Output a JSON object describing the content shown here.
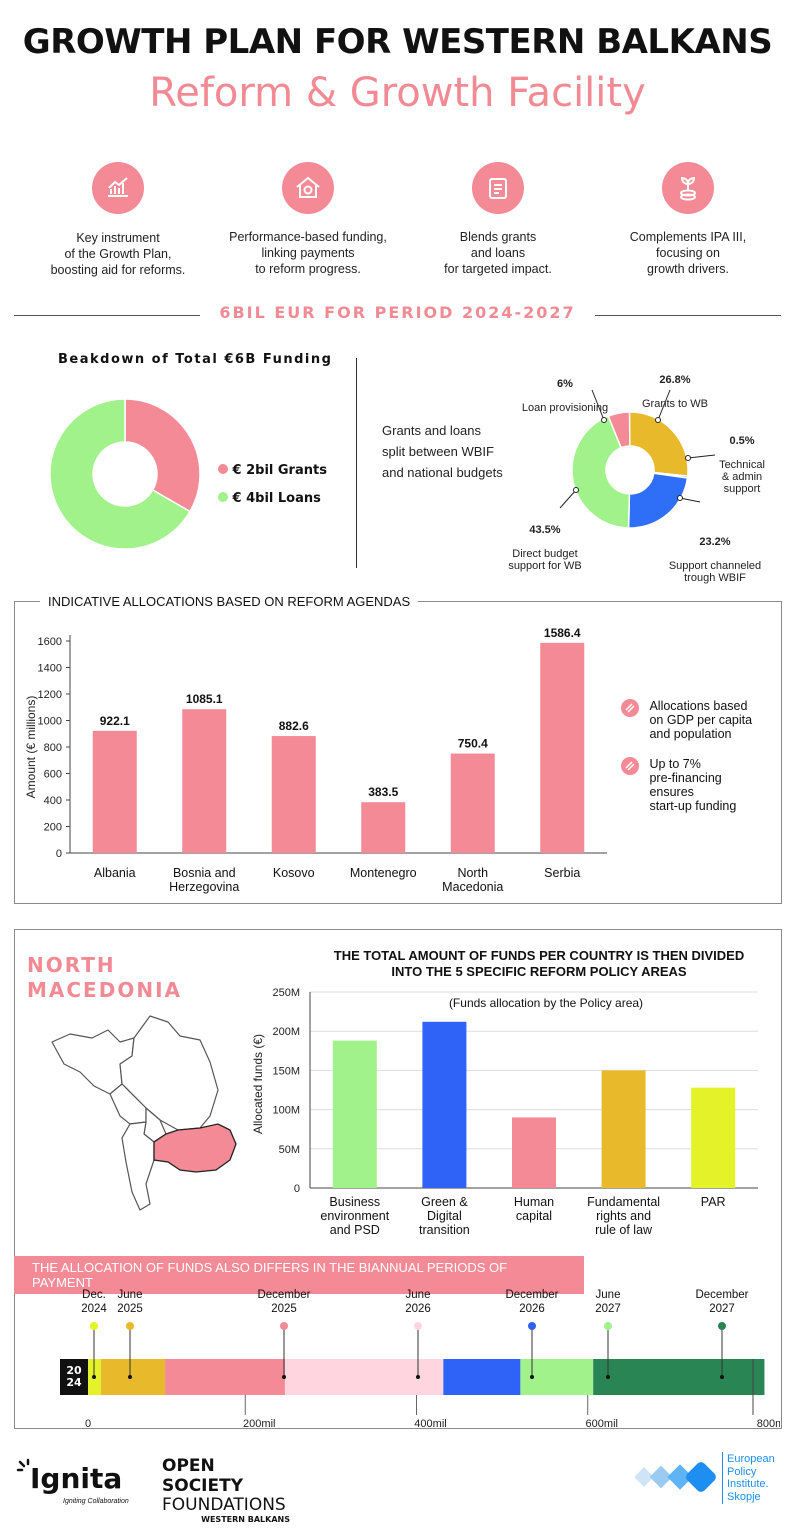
{
  "header": {
    "title": "GROWTH PLAN FOR WESTERN BALKANS",
    "subtitle": "Reform & Growth Facility"
  },
  "features": [
    {
      "icon": "chart-growth-icon",
      "text": "Key instrument\nof the Growth Plan,\nboosting aid for reforms."
    },
    {
      "icon": "house-coin-icon",
      "text": "Performance-based funding,\nlinking payments\nto reform progress."
    },
    {
      "icon": "checklist-icon",
      "text": "Blends grants\nand loans\nfor targeted impact."
    },
    {
      "icon": "plant-coins-icon",
      "text": "Complements IPA III,\nfocusing on\ngrowth drivers."
    }
  ],
  "period_heading": "6BIL EUR FOR PERIOD 2024-2027",
  "funding": {
    "title": "Beakdown of Total €6B Funding",
    "legend": [
      {
        "label": "€ 2bil Grants",
        "color": "#f48a95"
      },
      {
        "label": "€ 4bil Loans",
        "color": "#a1f28a"
      }
    ]
  },
  "split": {
    "text": "Grants and loans\nsplit between WBIF\nand national budgets",
    "labels": [
      {
        "pct": "6%",
        "name": "Loan provisioning"
      },
      {
        "pct": "26.8%",
        "name": "Grants to WB"
      },
      {
        "pct": "0.5%",
        "name": "Technical\n& admin\nsupport"
      },
      {
        "pct": "23.2%",
        "name": "Support channeled\ntrough WBIF"
      },
      {
        "pct": "43.5%",
        "name": "Direct budget\nsupport for WB"
      }
    ]
  },
  "allocations": {
    "title": "INDICATIVE ALLOCATIONS BASED ON REFORM AGENDAS",
    "notes": [
      "Allocations based\non GDP per capita\nand population",
      "Up to 7%\npre-financing\nensures\nstart-up funding"
    ]
  },
  "macedonia": {
    "country": "NORTH\nMACEDONIA",
    "heading": "THE TOTAL AMOUNT OF FUNDS PER COUNTRY IS THEN DIVIDED\nINTO THE 5 SPECIFIC REFORM POLICY AREAS",
    "chart_subtitle": "(Funds allocation by the Policy area)"
  },
  "payments": {
    "banner": "THE ALLOCATION OF FUNDS ALSO DIFFERS IN THE BIANNUAL PERIODS OF PAYMENT",
    "year_badge": "20\n24"
  },
  "footer": {
    "ignita": "Ignita",
    "ignita_tag": "Igniting Collaboration",
    "osf_line1": "OPEN SOCIETY",
    "osf_line2": "FOUNDATIONS",
    "osf_line3": "WESTERN BALKANS",
    "epi": "European\nPolicy\nInstitute.\nSkopje"
  },
  "chart_data": [
    {
      "type": "pie",
      "labels": [
        "€ 2bil Grants",
        "€ 4bil Loans"
      ],
      "values": [
        2,
        4
      ],
      "colors": [
        "#f48a95",
        "#a1f28a"
      ]
    },
    {
      "type": "pie",
      "labels": [
        "Loan provisioning",
        "Grants to WB",
        "Technical & admin support",
        "Support channeled trough WBIF",
        "Direct budget support for WB"
      ],
      "values": [
        6,
        26.8,
        0.5,
        23.2,
        43.5
      ],
      "colors": [
        "#f48a95",
        "#e8b92a",
        "#2f6ef7",
        "#2f6ef7",
        "#a1f28a"
      ]
    },
    {
      "type": "bar",
      "categories": [
        "Albania",
        "Bosnia and\nHerzegovina",
        "Kosovo",
        "Montenegro",
        "North\nMacedonia",
        "Serbia"
      ],
      "values": [
        922.1,
        1085.1,
        882.6,
        383.5,
        750.4,
        1586.4
      ],
      "value_labels": [
        "922.1",
        "1085.1",
        "882.6",
        "383.5",
        "750.4",
        "1586.4"
      ],
      "ylabel": "Amount (€ millions)",
      "ylim": [
        0,
        1600
      ],
      "yticks": [
        0,
        200,
        400,
        600,
        800,
        1000,
        1200,
        1400,
        1600
      ],
      "color": "#f48a95"
    },
    {
      "type": "bar",
      "categories": [
        "Business\nenvironment\nand PSD",
        "Green &\nDigital\ntransition",
        "Human\ncapital",
        "Fundamental\nrights and\nrule of law",
        "PAR"
      ],
      "values": [
        188,
        212,
        90,
        150,
        128
      ],
      "colors": [
        "#a1f28a",
        "#2f63f7",
        "#f48a95",
        "#e8b92a",
        "#e4f22a"
      ],
      "ylabel": "Allocated funds (€)",
      "ylim": [
        0,
        250
      ],
      "yticks": [
        "0",
        "50M",
        "100M",
        "150M",
        "200M",
        "250M"
      ],
      "grid": true
    },
    {
      "type": "bar",
      "orientation": "horizontal-stacked",
      "segments": [
        {
          "label": "Dec.\n2024",
          "start": 0,
          "end": 15,
          "color": "#e4f22a"
        },
        {
          "label": "June\n2025",
          "start": 15,
          "end": 90,
          "color": "#e8b92a"
        },
        {
          "label": "December\n2025",
          "start": 90,
          "end": 230,
          "color": "#f48a95"
        },
        {
          "label": "June\n2026",
          "start": 230,
          "end": 415,
          "color": "#ffd6e0"
        },
        {
          "label": "December\n2026",
          "start": 415,
          "end": 505,
          "color": "#2f63f7"
        },
        {
          "label": "June\n2027",
          "start": 505,
          "end": 590,
          "color": "#a1f28a"
        },
        {
          "label": "December\n2027",
          "start": 590,
          "end": 790,
          "color": "#2a8554"
        }
      ],
      "xticks": [
        "0",
        "200mil",
        "400mil",
        "600mil",
        "800mil"
      ],
      "xlim": [
        0,
        800
      ]
    }
  ]
}
